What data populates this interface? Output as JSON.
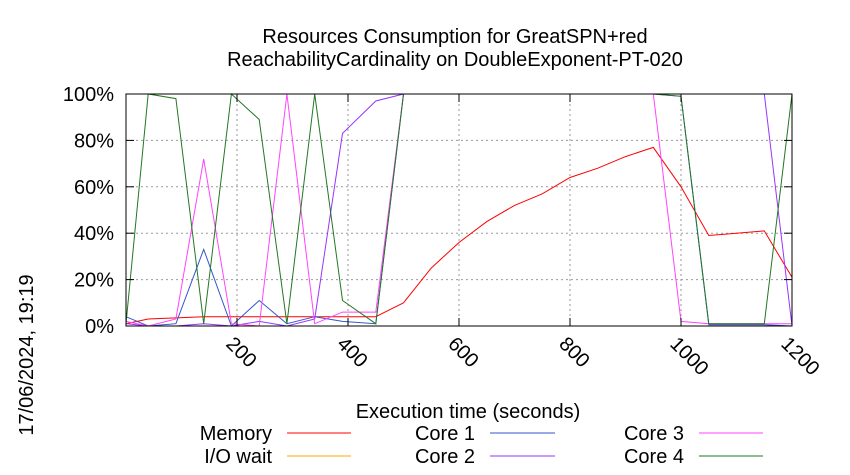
{
  "chart_data": {
    "type": "line",
    "title_line1": "Resources Consumption for GreatSPN+red",
    "title_line2": "ReachabilityCardinality on DoubleExponent-PT-020",
    "xlabel": "Execution time (seconds)",
    "ylabel": "",
    "side_label": "17/06/2024, 19:19",
    "xlim": [
      0,
      1200
    ],
    "ylim": [
      0,
      100
    ],
    "x_ticks": [
      200,
      400,
      600,
      800,
      1000,
      1200
    ],
    "x_tick_labels": [
      "200",
      "400",
      "600",
      "800",
      "1000",
      "1200"
    ],
    "y_ticks": [
      0,
      20,
      40,
      60,
      80,
      100
    ],
    "y_tick_labels": [
      "0%",
      "20%",
      "40%",
      "60%",
      "80%",
      "100%"
    ],
    "grid": true,
    "legend_position": "bottom",
    "series": [
      {
        "name": "Memory",
        "color": "#ff0000",
        "points": [
          [
            0,
            1
          ],
          [
            40,
            3
          ],
          [
            90,
            3.5
          ],
          [
            140,
            4
          ],
          [
            190,
            4
          ],
          [
            240,
            4
          ],
          [
            290,
            4
          ],
          [
            340,
            4
          ],
          [
            390,
            4
          ],
          [
            450,
            4
          ],
          [
            500,
            10
          ],
          [
            550,
            25
          ],
          [
            600,
            36
          ],
          [
            650,
            45
          ],
          [
            700,
            52
          ],
          [
            750,
            57
          ],
          [
            800,
            64
          ],
          [
            850,
            68
          ],
          [
            900,
            73
          ],
          [
            950,
            77
          ],
          [
            1000,
            60
          ],
          [
            1050,
            39
          ],
          [
            1100,
            40
          ],
          [
            1150,
            41
          ],
          [
            1200,
            21
          ]
        ]
      },
      {
        "name": "I/O wait",
        "color": "#ffa500",
        "points": [
          [
            0,
            0
          ],
          [
            100,
            0
          ],
          [
            200,
            0
          ],
          [
            300,
            0
          ],
          [
            400,
            0
          ],
          [
            500,
            0
          ],
          [
            600,
            0
          ],
          [
            700,
            0
          ],
          [
            800,
            0
          ],
          [
            900,
            0
          ],
          [
            1000,
            0
          ],
          [
            1100,
            0
          ],
          [
            1200,
            0
          ]
        ]
      },
      {
        "name": "Core 1",
        "color": "#3355cc",
        "points": [
          [
            0,
            4
          ],
          [
            40,
            0
          ],
          [
            90,
            1
          ],
          [
            140,
            33
          ],
          [
            190,
            0
          ],
          [
            240,
            11
          ],
          [
            290,
            1
          ],
          [
            340,
            4
          ],
          [
            390,
            2
          ],
          [
            450,
            1
          ],
          [
            500,
            100
          ],
          [
            600,
            100
          ],
          [
            700,
            100
          ],
          [
            800,
            100
          ],
          [
            900,
            100
          ],
          [
            950,
            100
          ],
          [
            1000,
            99
          ],
          [
            1050,
            0.5
          ],
          [
            1100,
            0.5
          ],
          [
            1150,
            0.5
          ],
          [
            1200,
            0
          ]
        ]
      },
      {
        "name": "Core 2",
        "color": "#9933ff",
        "points": [
          [
            0,
            1
          ],
          [
            40,
            0
          ],
          [
            90,
            0
          ],
          [
            140,
            1
          ],
          [
            190,
            0
          ],
          [
            240,
            2
          ],
          [
            290,
            0
          ],
          [
            340,
            3
          ],
          [
            390,
            83
          ],
          [
            450,
            97
          ],
          [
            500,
            100
          ],
          [
            600,
            100
          ],
          [
            700,
            100
          ],
          [
            800,
            100
          ],
          [
            900,
            100
          ],
          [
            950,
            100
          ],
          [
            1000,
            100
          ],
          [
            1050,
            100
          ],
          [
            1100,
            100
          ],
          [
            1150,
            100
          ],
          [
            1200,
            0
          ]
        ]
      },
      {
        "name": "Core 3",
        "color": "#ff44ff",
        "points": [
          [
            0,
            2
          ],
          [
            40,
            0
          ],
          [
            90,
            3
          ],
          [
            140,
            72
          ],
          [
            190,
            1
          ],
          [
            240,
            0
          ],
          [
            290,
            100
          ],
          [
            340,
            1
          ],
          [
            390,
            6
          ],
          [
            450,
            6
          ],
          [
            500,
            100
          ],
          [
            600,
            100
          ],
          [
            700,
            100
          ],
          [
            800,
            100
          ],
          [
            900,
            100
          ],
          [
            950,
            100
          ],
          [
            1000,
            2
          ],
          [
            1050,
            1
          ],
          [
            1100,
            1
          ],
          [
            1150,
            1
          ],
          [
            1200,
            1
          ]
        ]
      },
      {
        "name": "Core 4",
        "color": "#227722",
        "points": [
          [
            0,
            1
          ],
          [
            40,
            100
          ],
          [
            90,
            98
          ],
          [
            140,
            1
          ],
          [
            190,
            100
          ],
          [
            240,
            89
          ],
          [
            290,
            1
          ],
          [
            340,
            100
          ],
          [
            390,
            11
          ],
          [
            450,
            1
          ],
          [
            500,
            100
          ],
          [
            600,
            100
          ],
          [
            700,
            100
          ],
          [
            800,
            100
          ],
          [
            900,
            100
          ],
          [
            950,
            100
          ],
          [
            1000,
            99
          ],
          [
            1050,
            1
          ],
          [
            1100,
            1
          ],
          [
            1150,
            1
          ],
          [
            1200,
            100
          ]
        ]
      }
    ]
  }
}
